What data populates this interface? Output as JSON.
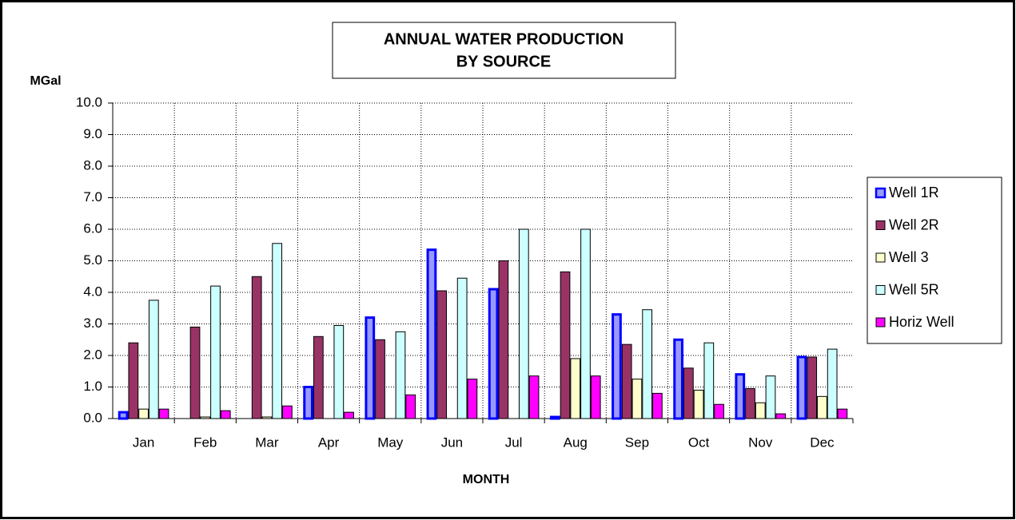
{
  "chart_data": {
    "type": "bar",
    "title": "ANNUAL WATER PRODUCTION",
    "subtitle": "BY SOURCE",
    "y_label": "MGal",
    "x_label": "MONTH",
    "categories": [
      "Jan",
      "Feb",
      "Mar",
      "Apr",
      "May",
      "Jun",
      "Jul",
      "Aug",
      "Sep",
      "Oct",
      "Nov",
      "Dec"
    ],
    "series": [
      {
        "name": "Well 1R",
        "color": "#9999ff",
        "border": "#0000ff",
        "values": [
          0.2,
          0,
          0,
          1.0,
          3.2,
          5.35,
          4.1,
          0.05,
          3.3,
          2.5,
          1.4,
          1.95
        ]
      },
      {
        "name": "Well 2R",
        "color": "#993366",
        "border": "#000000",
        "values": [
          2.4,
          2.9,
          4.5,
          2.6,
          2.5,
          4.05,
          5.0,
          4.65,
          2.35,
          1.6,
          0.95,
          1.95
        ]
      },
      {
        "name": "Well 3",
        "color": "#ffffcc",
        "border": "#000000",
        "values": [
          0.3,
          0.05,
          0.05,
          0,
          0,
          0,
          0,
          1.9,
          1.25,
          0.9,
          0.5,
          0.7
        ]
      },
      {
        "name": "Well 5R",
        "color": "#ccffff",
        "border": "#000000",
        "values": [
          3.75,
          4.2,
          5.55,
          2.95,
          2.75,
          4.45,
          6.0,
          6.0,
          3.45,
          2.4,
          1.35,
          2.2
        ]
      },
      {
        "name": "Horiz Well",
        "color": "#ff00ff",
        "border": "#000000",
        "values": [
          0.3,
          0.25,
          0.4,
          0.2,
          0.75,
          1.25,
          1.35,
          1.35,
          0.8,
          0.45,
          0.15,
          0.3
        ]
      }
    ],
    "ylim": [
      0,
      10
    ],
    "yticks": [
      {
        "value": 0,
        "label": "0.0"
      },
      {
        "value": 1,
        "label": "1.0"
      },
      {
        "value": 2,
        "label": "2.0"
      },
      {
        "value": 3,
        "label": "3.0"
      },
      {
        "value": 4,
        "label": "4.0"
      },
      {
        "value": 5,
        "label": "5.0"
      },
      {
        "value": 6,
        "label": "6.0"
      },
      {
        "value": 7,
        "label": "7.0"
      },
      {
        "value": 8,
        "label": "8.0"
      },
      {
        "value": 9,
        "label": "9.0"
      },
      {
        "value": 10,
        "label": "10.0"
      }
    ],
    "grid": true,
    "legend": "right"
  }
}
